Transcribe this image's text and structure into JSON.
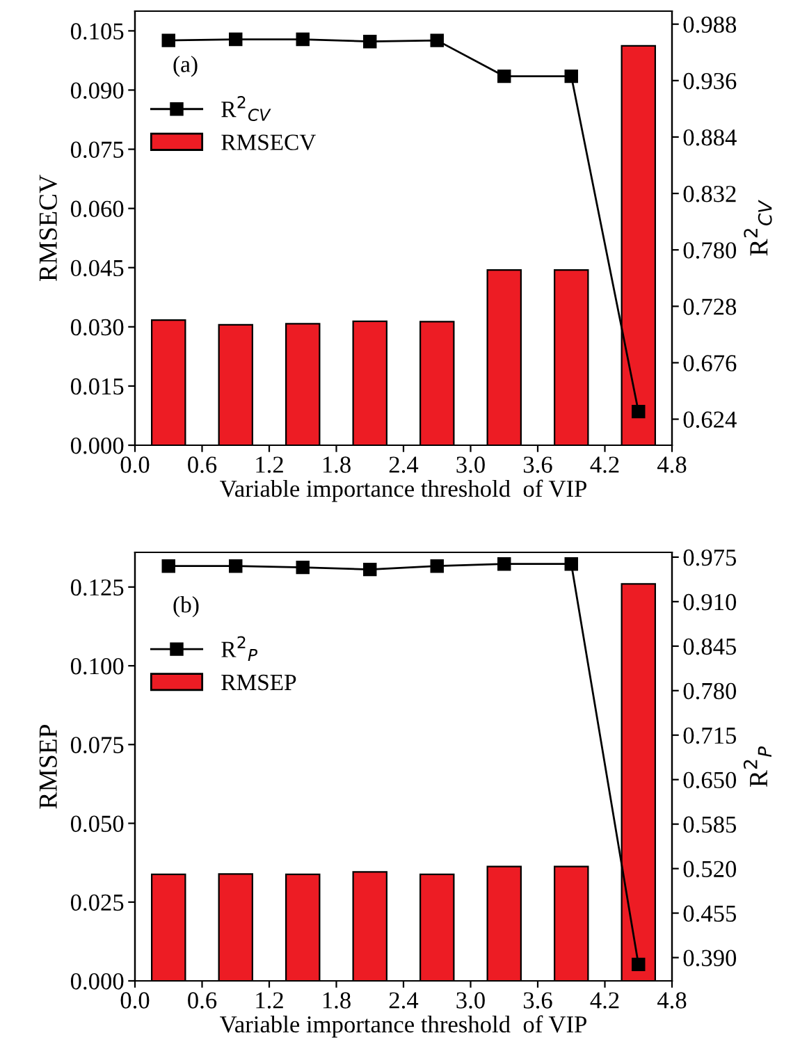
{
  "chart_data": [
    {
      "type": "bar",
      "x": [
        0.3,
        0.9,
        1.5,
        2.1,
        2.7,
        3.3,
        3.9,
        4.5
      ],
      "xlabel": "Variable importance threshold  of VIP",
      "ylabel": "RMSECV",
      "y2label": "R$^{2}$$_{CV}$",
      "annotations": [
        "(a)"
      ],
      "legend": "top left",
      "series": [
        {
          "type": "line",
          "name": "R$^{2}$$_{CV}$",
          "color": "#000000",
          "axis": "y2",
          "marker": "square",
          "values": [
            0.973,
            0.974,
            0.974,
            0.972,
            0.973,
            0.94,
            0.94,
            0.631
          ]
        },
        {
          "name": "RMSECV",
          "color": "#ed1c24",
          "values": [
            0.0317,
            0.0305,
            0.0308,
            0.0314,
            0.0313,
            0.0444,
            0.0444,
            0.1012
          ]
        }
      ],
      "xlim": [
        0,
        4.8
      ],
      "xticks": [
        {
          "value": 0,
          "label": "0.0"
        },
        {
          "value": 0.6,
          "label": "0.6"
        },
        {
          "value": 1.2,
          "label": "1.2"
        },
        {
          "value": 1.8,
          "label": "1.8"
        },
        {
          "value": 2.4,
          "label": "2.4"
        },
        {
          "value": 3.0,
          "label": "3.0"
        },
        {
          "value": 3.6,
          "label": "3.6"
        },
        {
          "value": 4.2,
          "label": "4.2"
        },
        {
          "value": 4.8,
          "label": "4.8"
        }
      ],
      "ylim": [
        0,
        0.11
      ],
      "yticks": [
        {
          "value": 0,
          "label": "0.000"
        },
        {
          "value": 0.015,
          "label": "0.015"
        },
        {
          "value": 0.03,
          "label": "0.030"
        },
        {
          "value": 0.045,
          "label": "0.045"
        },
        {
          "value": 0.06,
          "label": "0.060"
        },
        {
          "value": 0.075,
          "label": "0.075"
        },
        {
          "value": 0.09,
          "label": "0.090"
        },
        {
          "value": 0.105,
          "label": "0.105"
        }
      ],
      "y2lim": [
        0.6,
        1.0
      ],
      "y2ticks": [
        {
          "value": 0.624,
          "label": "0.624"
        },
        {
          "value": 0.676,
          "label": "0.676"
        },
        {
          "value": 0.728,
          "label": "0.728"
        },
        {
          "value": 0.78,
          "label": "0.780"
        },
        {
          "value": 0.832,
          "label": "0.832"
        },
        {
          "value": 0.884,
          "label": "0.884"
        },
        {
          "value": 0.936,
          "label": "0.936"
        },
        {
          "value": 0.988,
          "label": "0.988"
        }
      ]
    },
    {
      "type": "bar",
      "x": [
        0.3,
        0.9,
        1.5,
        2.1,
        2.7,
        3.3,
        3.9,
        4.5
      ],
      "xlabel": "Variable importance threshold  of VIP",
      "ylabel": "RMSEP",
      "y2label": "R$^{2}$$_{P}$",
      "annotations": [
        "(b)"
      ],
      "legend": "top left",
      "series": [
        {
          "type": "line",
          "name": "R$^{2}$$_{P}$",
          "color": "#000000",
          "axis": "y2",
          "marker": "square",
          "values": [
            0.962,
            0.962,
            0.96,
            0.957,
            0.962,
            0.965,
            0.965,
            0.38
          ]
        },
        {
          "name": "RMSEP",
          "color": "#ed1c24",
          "values": [
            0.0338,
            0.0339,
            0.0338,
            0.0346,
            0.0338,
            0.0363,
            0.0363,
            0.126
          ]
        }
      ],
      "xlim": [
        0,
        4.8
      ],
      "xticks": [
        {
          "value": 0,
          "label": "0.0"
        },
        {
          "value": 0.6,
          "label": "0.6"
        },
        {
          "value": 1.2,
          "label": "1.2"
        },
        {
          "value": 1.8,
          "label": "1.8"
        },
        {
          "value": 2.4,
          "label": "2.4"
        },
        {
          "value": 3.0,
          "label": "3.0"
        },
        {
          "value": 3.6,
          "label": "3.6"
        },
        {
          "value": 4.2,
          "label": "4.2"
        },
        {
          "value": 4.8,
          "label": "4.8"
        }
      ],
      "ylim": [
        0,
        0.136
      ],
      "yticks": [
        {
          "value": 0,
          "label": "0.000"
        },
        {
          "value": 0.025,
          "label": "0.025"
        },
        {
          "value": 0.05,
          "label": "0.050"
        },
        {
          "value": 0.075,
          "label": "0.075"
        },
        {
          "value": 0.1,
          "label": "0.100"
        },
        {
          "value": 0.125,
          "label": "0.125"
        }
      ],
      "y2lim": [
        0.356,
        0.982
      ],
      "y2ticks": [
        {
          "value": 0.39,
          "label": "0.390"
        },
        {
          "value": 0.455,
          "label": "0.455"
        },
        {
          "value": 0.52,
          "label": "0.520"
        },
        {
          "value": 0.585,
          "label": "0.585"
        },
        {
          "value": 0.65,
          "label": "0.650"
        },
        {
          "value": 0.715,
          "label": "0.715"
        },
        {
          "value": 0.78,
          "label": "0.780"
        },
        {
          "value": 0.845,
          "label": "0.845"
        },
        {
          "value": 0.91,
          "label": "0.910"
        },
        {
          "value": 0.975,
          "label": "0.975"
        }
      ]
    }
  ]
}
